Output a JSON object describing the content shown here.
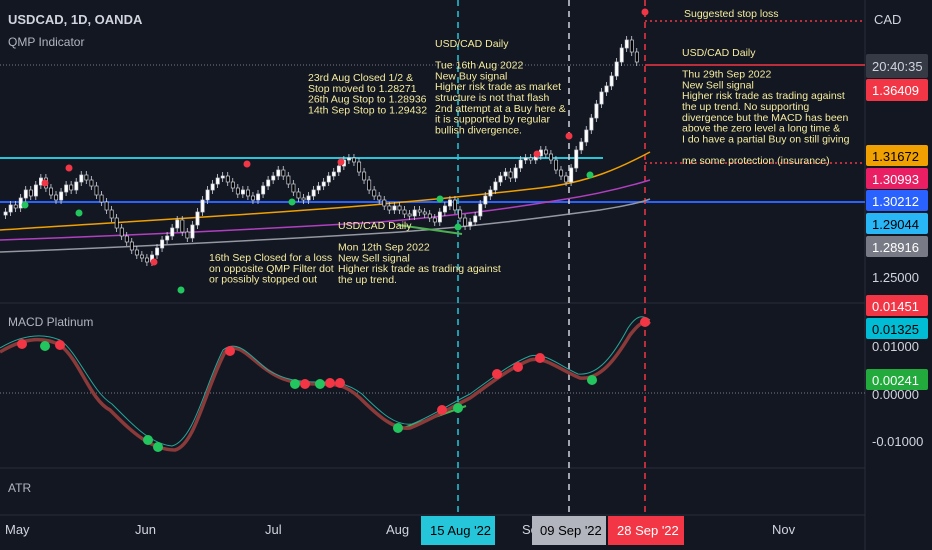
{
  "header": {
    "symbol_line": "USDCAD, 1D, OANDA",
    "indicator_main": "QMP Indicator",
    "currency": "CAD",
    "countdown": "20:40:35"
  },
  "panes": {
    "macd_title": "MACD Platinum",
    "atr_title": "ATR"
  },
  "price_axis": {
    "current_price": "1.36409",
    "labels": [
      {
        "text": "1.31672",
        "bg": "#f0a000",
        "fg": "#000000"
      },
      {
        "text": "1.30993",
        "bg": "#e91e63",
        "fg": "#ffffff"
      },
      {
        "text": "1.30212",
        "bg": "#2962ff",
        "fg": "#ffffff"
      },
      {
        "text": "1.29044",
        "bg": "#29b6f6",
        "fg": "#000000"
      },
      {
        "text": "1.28916",
        "bg": "#787b86",
        "fg": "#ffffff"
      }
    ],
    "plain_tick": "1.25000"
  },
  "macd_axis": {
    "labels": [
      {
        "text": "0.01451",
        "bg": "#f23645",
        "fg": "#ffffff"
      },
      {
        "text": "0.01325",
        "bg": "#00bcd4",
        "fg": "#000000"
      },
      {
        "text": "0.00241",
        "bg": "#22ab3c",
        "fg": "#ffffff"
      }
    ],
    "ticks": [
      "0.01000",
      "0.00000",
      "-0.01000"
    ]
  },
  "time_axis": {
    "months": [
      "May",
      "Jun",
      "Jul",
      "Aug",
      "Se",
      "Nov"
    ],
    "markers": [
      {
        "text": "15 Aug '22",
        "bg": "#26c6da",
        "fg": "#000000"
      },
      {
        "text": "09 Sep '22",
        "bg": "#b2b5be",
        "fg": "#000000"
      },
      {
        "text": "28 Sep '22",
        "bg": "#f23645",
        "fg": "#ffffff"
      }
    ]
  },
  "annotations": {
    "stop_label": "Suggested stop loss",
    "note_aug16": [
      "USD/CAD Daily",
      "",
      "Tue 16th Aug 2022",
      "New Buy signal",
      "Higher risk trade as market",
      "structure is not that flash",
      "2nd attempt at a Buy here &",
      "it is supported by regular",
      "bullish divergence."
    ],
    "note_aug23": [
      "23rd Aug Closed 1/2 &",
      "Stop moved to 1.28271",
      "26th Aug Stop to 1.28936",
      "14th Sep Stop to 1.29432"
    ],
    "note_sep16": [
      "16th Sep Closed for a loss",
      "on opposite QMP Filter dot",
      "or possibly stopped out"
    ],
    "note_sep12": [
      "USD/CAD Daily",
      "",
      "Mon 12th Sep 2022",
      "New Sell signal",
      "Higher risk trade as trading against",
      "the up trend."
    ],
    "note_sep29": [
      "USD/CAD Daily",
      "",
      "Thu 29th Sep 2022",
      "New Sell signal",
      "Higher risk trade as trading against",
      "the up trend. No supporting",
      "divergence but the MACD has been",
      "above the zero level a long time &",
      "I do have a partial Buy on still giving",
      "",
      "me some protection (insurance)"
    ]
  },
  "colors": {
    "background": "#131722",
    "up": "#ffffff",
    "down": "#000000",
    "signal_buy": "#22c55e",
    "signal_sell": "#f23645",
    "level_cyan": "#26c6da",
    "level_blue": "#2962ff",
    "ma_orange": "#f0a000",
    "ma_purple": "#b040c0",
    "ma_gray": "#9598a1",
    "macd_main": "#8b3a3a",
    "macd_signal": "#26a69a"
  }
}
